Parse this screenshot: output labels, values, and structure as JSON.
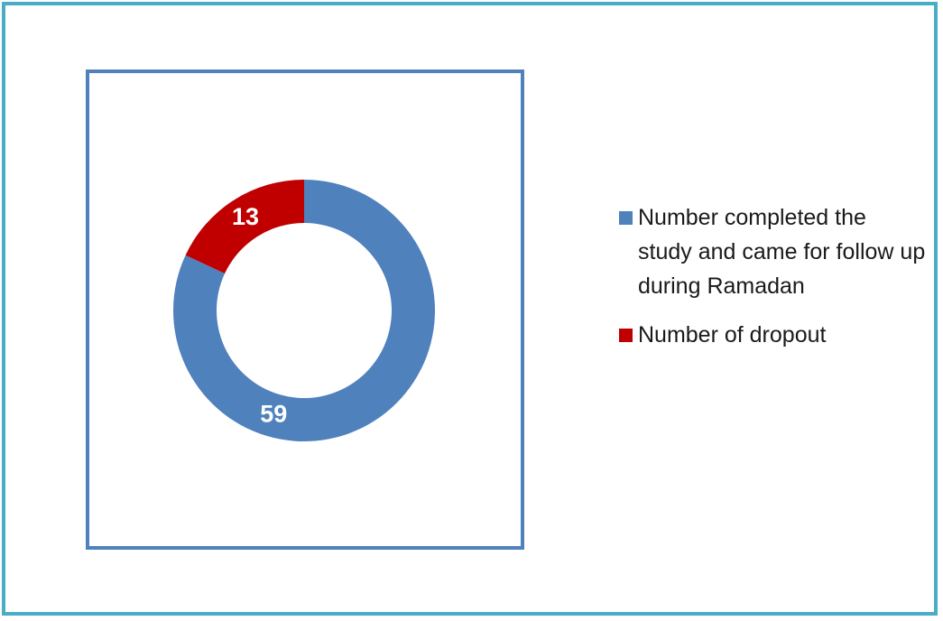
{
  "chart_data": {
    "type": "pie",
    "variant": "donut",
    "title": "",
    "series": [
      {
        "name": "Number completed the study and came for follow up  during Ramadan",
        "value": 59,
        "color": "#4f81bd"
      },
      {
        "name": "Number of dropout",
        "value": 13,
        "color": "#c00000"
      }
    ],
    "legend_position": "right",
    "data_labels": [
      "59",
      "13"
    ]
  },
  "legend": {
    "items": [
      {
        "label": "Number completed the study and came for follow up  during Ramadan",
        "color": "#4f81bd"
      },
      {
        "label": "Number of dropout",
        "color": "#c00000"
      }
    ]
  },
  "colors": {
    "outer_border": "#4bacc6",
    "plot_border": "#4f81bd"
  }
}
